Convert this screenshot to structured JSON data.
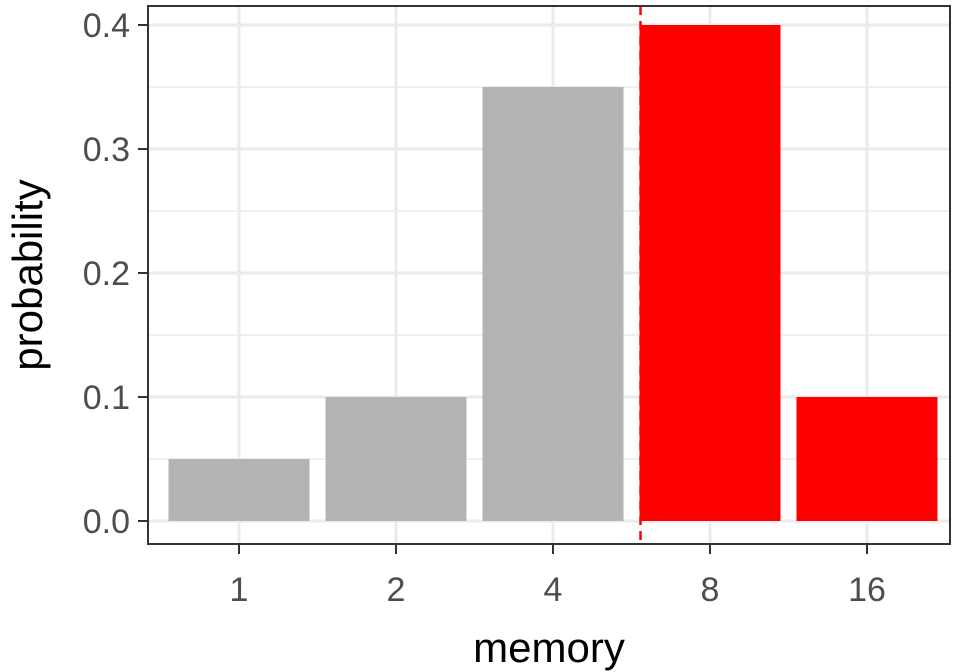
{
  "chart_data": {
    "type": "bar",
    "categories": [
      "1",
      "2",
      "4",
      "8",
      "16"
    ],
    "values": [
      0.05,
      0.1,
      0.35,
      0.4,
      0.1
    ],
    "title": "",
    "xlabel": "memory",
    "ylabel": "probability",
    "ylim": [
      0,
      0.4
    ],
    "yticks": [
      "0.0",
      "0.1",
      "0.2",
      "0.3",
      "0.4"
    ],
    "ytick_values": [
      0,
      0.1,
      0.2,
      0.3,
      0.4
    ],
    "grid": true,
    "threshold_line": {
      "style": "dashed",
      "color": "#ff0000",
      "position_between_categories": [
        "4",
        "8"
      ]
    },
    "colors": {
      "below_threshold": "#b3b3b3",
      "above_threshold": "#ff0000",
      "grid": "#ebebeb",
      "panel_border": "#333333",
      "tick_text": "#4d4d4d"
    },
    "bar_groups": [
      "below_threshold",
      "below_threshold",
      "below_threshold",
      "above_threshold",
      "above_threshold"
    ]
  }
}
